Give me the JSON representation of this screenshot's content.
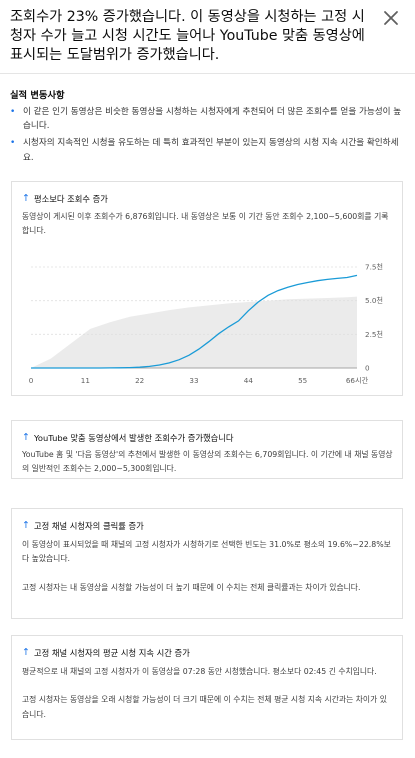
{
  "header": {
    "headline": "조회수가 23% 증가했습니다. 이 동영상을 시청하는 고정 시청자 수가 늘고 시청 시간도 늘어나 YouTube 맞춤 동영상에 표시되는 도달범위가 증가했습니다.",
    "close_icon": "close-icon"
  },
  "insights": {
    "title": "실적 변동사항",
    "items": [
      "이 같은 인기 동영상은 비슷한 동영상을 시청하는 시청자에게 추천되어 더 많은 조회수를 얻을 가능성이 높습니다.",
      "시청자의 지속적인 시청을 유도하는 데 특히 효과적인 부분이 있는지 동영상의 시청 지속 시간을 확인하세요."
    ]
  },
  "cards": [
    {
      "title": "평소보다 조회수 증가",
      "body": [
        "동영상이 게시된 이후 조회수가 6,876회입니다. 내 동영상은 보통 이 기간 동안 조회수 2,100~5,600회를 기록합니다."
      ]
    },
    {
      "title": "YouTube 맞춤 동영상에서 발생한 조회수가 증가했습니다",
      "body": [
        "YouTube 홈 및 '다음 동영상'의 추천에서 발생한 이 동영상의 조회수는 6,709회입니다. 이 기간에 내 채널 동영상의 일반적인 조회수는 2,000~5,300회입니다."
      ]
    },
    {
      "title": "고정 채널 시청자의 클릭률 증가",
      "body": [
        "이 동영상이 표시되었을 때 채널의 고정 시청자가 시청하기로 선택한 빈도는 31.0%로 평소의 19.6%~22.8%보다 높았습니다.",
        "고정 시청자는 내 동영상을 시청할 가능성이 더 높기 때문에 이 수치는 전체 클릭률과는 차이가 있습니다."
      ]
    },
    {
      "title": "고정 채널 시청자의 평균 시청 지속 시간 증가",
      "body": [
        "평균적으로 내 채널의 고정 시청자가 이 동영상을 07:28 동안 시청했습니다. 평소보다 02:45 긴 수치입니다.",
        "고정 시청자는 동영상을 오래 시청할 가능성이 더 크기 때문에 이 수치는 전체 평균 시청 지속 시간과는 차이가 있습니다."
      ]
    }
  ],
  "chart_data": {
    "type": "line",
    "x": [
      0,
      2,
      4,
      6,
      8,
      10,
      12,
      14,
      16,
      18,
      20,
      22,
      24,
      26,
      28,
      30,
      32,
      34,
      36,
      38,
      40,
      42,
      44,
      46,
      48,
      50,
      52,
      54,
      56,
      58,
      60,
      62,
      64,
      66
    ],
    "series": [
      {
        "values": [
          0,
          0,
          0,
          0,
          0,
          0,
          0,
          0,
          5,
          15,
          30,
          60,
          120,
          220,
          380,
          620,
          950,
          1400,
          1950,
          2550,
          3050,
          3500,
          4250,
          4900,
          5400,
          5750,
          6000,
          6200,
          6350,
          6480,
          6580,
          6650,
          6720,
          6876
        ]
      }
    ],
    "band_x": [
      0,
      4,
      8,
      12,
      16,
      20,
      24,
      28,
      32,
      36,
      40,
      44,
      48,
      52,
      56,
      60,
      64,
      66
    ],
    "band_low": [
      0,
      0,
      0,
      0,
      0,
      0,
      0,
      0,
      0,
      0,
      0,
      0,
      0,
      0,
      0,
      0,
      0,
      0
    ],
    "band_high": [
      0,
      700,
      1800,
      2900,
      3400,
      3800,
      4050,
      4300,
      4500,
      4650,
      4800,
      4900,
      5000,
      5100,
      5150,
      5200,
      5250,
      5300
    ],
    "x_ticks": [
      "0",
      "11",
      "22",
      "33",
      "44",
      "55",
      "66시간"
    ],
    "y_ticks": [
      "0",
      "2.5천",
      "5.0천",
      "7.5천"
    ],
    "xlim": [
      0,
      66
    ],
    "ylim": [
      0,
      7500
    ],
    "grid": true,
    "colors": {
      "line": "#1a9bd7",
      "band": "#ebebeb",
      "grid": "#e0e0e0"
    }
  }
}
